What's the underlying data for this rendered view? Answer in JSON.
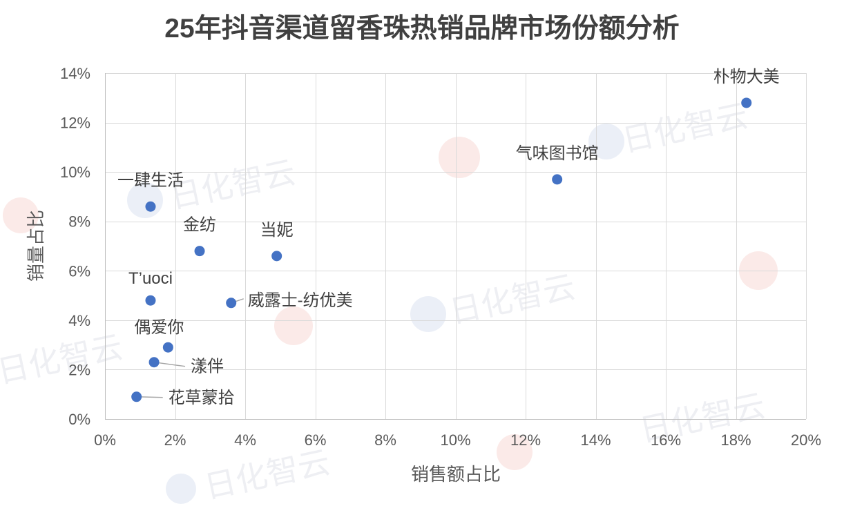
{
  "chart_data": {
    "type": "scatter",
    "title": "25年抖音渠道留香珠热销品牌市场份额分析",
    "xlabel": "销售额占比",
    "ylabel": "销量占比",
    "xlim": [
      0,
      20
    ],
    "ylim": [
      0,
      14
    ],
    "x_ticks": [
      "0%",
      "2%",
      "4%",
      "6%",
      "8%",
      "10%",
      "12%",
      "14%",
      "16%",
      "18%",
      "20%"
    ],
    "y_ticks": [
      "0%",
      "2%",
      "4%",
      "6%",
      "8%",
      "10%",
      "12%",
      "14%"
    ],
    "grid": true,
    "series": [
      {
        "color": "#4472C4",
        "points": [
          {
            "label": "朴物大美",
            "x": 18.3,
            "y": 12.8
          },
          {
            "label": "气味图书馆",
            "x": 12.9,
            "y": 9.7
          },
          {
            "label": "一肆生活",
            "x": 1.3,
            "y": 8.6
          },
          {
            "label": "金纺",
            "x": 2.7,
            "y": 6.8
          },
          {
            "label": "当妮",
            "x": 4.9,
            "y": 6.6
          },
          {
            "label": "T’uoci",
            "x": 1.3,
            "y": 4.8
          },
          {
            "label": "威露士-纺优美",
            "x": 3.6,
            "y": 4.7
          },
          {
            "label": "偶爱你",
            "x": 1.8,
            "y": 2.9
          },
          {
            "label": "漾伴",
            "x": 1.4,
            "y": 2.3
          },
          {
            "label": "花草蒙拾",
            "x": 0.9,
            "y": 0.9
          }
        ]
      }
    ]
  },
  "watermark": {
    "text": "日化智云"
  }
}
